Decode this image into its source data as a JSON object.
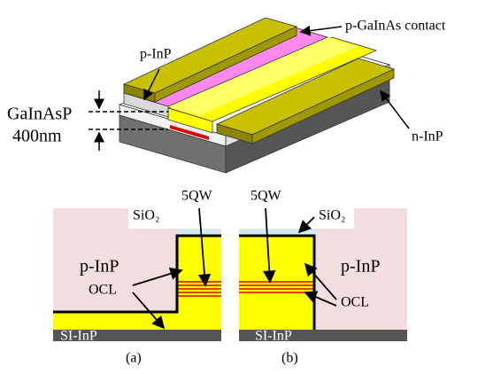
{
  "top_view": {
    "p_inp": "p-InP",
    "contact": "p-GaInAs contact",
    "layer": "GaInAsP",
    "thickness": "400nm",
    "n_inp": "n-InP"
  },
  "panels": [
    {
      "caption": "(a)",
      "sio2": "SiO₂",
      "qw": "5QW",
      "p_inp": "p-InP",
      "ocl": "OCL",
      "substrate": "SI-InP"
    },
    {
      "caption": "(b)",
      "sio2": "SiO₂",
      "qw": "5QW",
      "p_inp": "p-InP",
      "ocl": "OCL",
      "substrate": "SI-InP"
    }
  ]
}
